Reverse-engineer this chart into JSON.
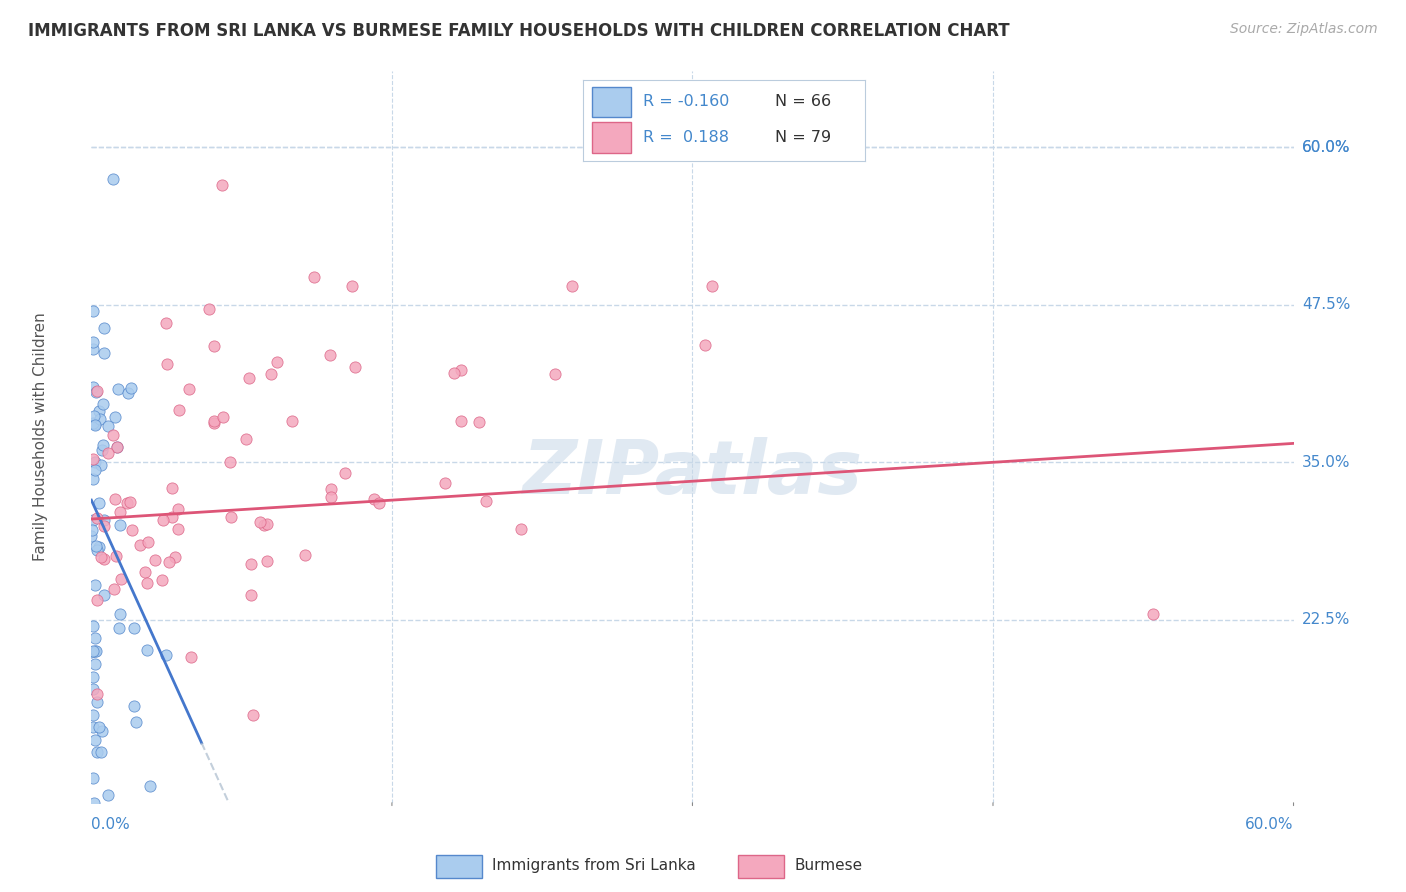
{
  "title": "IMMIGRANTS FROM SRI LANKA VS BURMESE FAMILY HOUSEHOLDS WITH CHILDREN CORRELATION CHART",
  "source": "Source: ZipAtlas.com",
  "ylabel": "Family Households with Children",
  "ytick_labels": [
    "60.0%",
    "47.5%",
    "35.0%",
    "22.5%"
  ],
  "ytick_values": [
    0.6,
    0.475,
    0.35,
    0.225
  ],
  "xlim": [
    0.0,
    0.6
  ],
  "ylim": [
    0.08,
    0.66
  ],
  "watermark": "ZIPatlas",
  "legend_r1": "R = -0.160",
  "legend_n1": "N = 66",
  "legend_r2": "R =  0.188",
  "legend_n2": "N = 79",
  "color_sl_fill": "#aaccee",
  "color_sl_edge": "#5588cc",
  "color_bu_fill": "#f4a8be",
  "color_bu_edge": "#dd6688",
  "color_trend_sl": "#4477cc",
  "color_trend_bu": "#dd5577",
  "color_axis_label": "#4488cc",
  "background_color": "#ffffff",
  "grid_color": "#c8d8e8",
  "title_color": "#333333",
  "source_color": "#aaaaaa",
  "watermark_color": "#c8d8e8"
}
